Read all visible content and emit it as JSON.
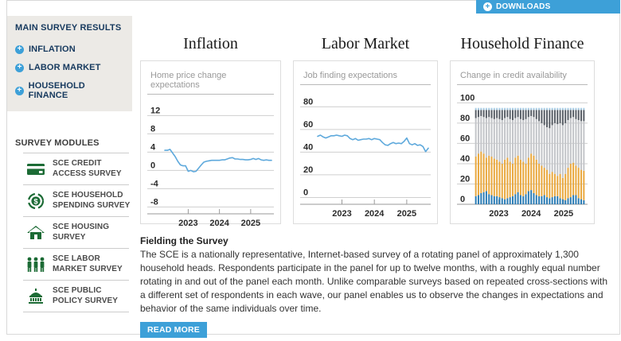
{
  "header": {
    "downloads_label": "DOWNLOADS"
  },
  "sidebar": {
    "main_title": "MAIN SURVEY RESULTS",
    "items": [
      {
        "label": "INFLATION"
      },
      {
        "label": "LABOR MARKET"
      },
      {
        "label": "HOUSEHOLD FINANCE"
      }
    ],
    "modules_title": "SURVEY MODULES",
    "modules": [
      {
        "icon": "credit-card-icon",
        "label": "SCE CREDIT ACCESS SURVEY"
      },
      {
        "icon": "dollar-cycle-icon",
        "label": "SCE HOUSEHOLD SPENDING SURVEY"
      },
      {
        "icon": "house-icon",
        "label": "SCE HOUSING SURVEY"
      },
      {
        "icon": "people-icon",
        "label": "SCE LABOR MARKET SURVEY"
      },
      {
        "icon": "capitol-icon",
        "label": "SCE PUBLIC POLICY SURVEY"
      }
    ]
  },
  "colors": {
    "accent_blue": "#3da0d8",
    "navy": "#16395e",
    "module_green": "#1c6b35",
    "line_blue": "#5ea9dc",
    "grid": "#cfcfcf",
    "axis": "#9a9a9a"
  },
  "chart_data": [
    {
      "type": "line",
      "title": "Inflation",
      "subtitle": "Home price change expectations",
      "yticks": [
        12,
        8,
        4,
        0,
        -4,
        -8
      ],
      "ylim": [
        -9.5,
        13.8
      ],
      "xticks": [
        {
          "label": "2023",
          "index": 9
        },
        {
          "label": "2024",
          "index": 21
        },
        {
          "label": "2025",
          "index": 33
        }
      ],
      "line_color": "#5ea9dc",
      "values": [
        4.4,
        4.4,
        4.6,
        3.8,
        3.0,
        2.0,
        1.2,
        1.0,
        1.0,
        -0.2,
        0.0,
        -0.3,
        -0.2,
        0.5,
        1.2,
        1.8,
        2.0,
        2.1,
        2.2,
        2.2,
        2.2,
        2.2,
        2.3,
        2.3,
        2.5,
        2.7,
        2.8,
        2.5,
        2.5,
        2.4,
        2.4,
        2.3,
        2.3,
        2.4,
        2.6,
        2.4,
        2.6,
        2.3,
        2.2,
        2.3,
        2.2,
        2.2
      ]
    },
    {
      "type": "line",
      "title": "Labor Market",
      "subtitle": "Job finding expectations",
      "yticks": [
        80,
        60,
        40,
        20,
        0
      ],
      "ylim": [
        -6,
        88
      ],
      "xticks": [
        {
          "label": "2023",
          "index": 9
        },
        {
          "label": "2024",
          "index": 21
        },
        {
          "label": "2025",
          "index": 33
        }
      ],
      "line_color": "#5ea9dc",
      "values": [
        54,
        55,
        53.5,
        52.5,
        53.5,
        54.5,
        54.5,
        55,
        54.5,
        54,
        55,
        54.5,
        52,
        51,
        52,
        50.5,
        51,
        51.5,
        51.5,
        52,
        51,
        52,
        51.5,
        51,
        48.5,
        46.5,
        46,
        47.5,
        48.5,
        47.5,
        48,
        47.5,
        49.5,
        52.5,
        47.5,
        46.5,
        47.5,
        46,
        46.5,
        45,
        40.5,
        43.5
      ]
    },
    {
      "type": "stacked-bar",
      "title": "Household Finance",
      "subtitle": "Change in credit availability",
      "yticks": [
        100,
        80,
        60,
        40,
        20,
        0
      ],
      "ylim": [
        0,
        105
      ],
      "xticks": [
        {
          "label": "2023",
          "index": 9
        },
        {
          "label": "2024",
          "index": 21
        },
        {
          "label": "2025",
          "index": 33
        }
      ],
      "segment_colors": [
        "#2b7cb5",
        "#e9a83e",
        "#c3c5c9",
        "#585e66",
        "#a9cde5"
      ],
      "stacks": [
        [
          8,
          39,
          38,
          8,
          2
        ],
        [
          9,
          41,
          36,
          7,
          2
        ],
        [
          11,
          41,
          35,
          6,
          2
        ],
        [
          12,
          38,
          36,
          7,
          2
        ],
        [
          13,
          33,
          39,
          8,
          2
        ],
        [
          10,
          38,
          38,
          7,
          2
        ],
        [
          9,
          38,
          38,
          8,
          2
        ],
        [
          8,
          37,
          39,
          9,
          2
        ],
        [
          8,
          36,
          41,
          8,
          2
        ],
        [
          7,
          35,
          42,
          9,
          2
        ],
        [
          6,
          34,
          43,
          10,
          2
        ],
        [
          5,
          39,
          41,
          8,
          2
        ],
        [
          6,
          40,
          40,
          7,
          2
        ],
        [
          7,
          35,
          42,
          9,
          2
        ],
        [
          8,
          32,
          43,
          10,
          2
        ],
        [
          10,
          36,
          39,
          8,
          2
        ],
        [
          12,
          36,
          38,
          7,
          2
        ],
        [
          9,
          35,
          40,
          9,
          2
        ],
        [
          8,
          34,
          41,
          10,
          2
        ],
        [
          10,
          30,
          44,
          9,
          2
        ],
        [
          13,
          33,
          40,
          7,
          2
        ],
        [
          14,
          36,
          37,
          6,
          2
        ],
        [
          11,
          37,
          38,
          7,
          2
        ],
        [
          9,
          35,
          40,
          9,
          2
        ],
        [
          8,
          32,
          42,
          11,
          2
        ],
        [
          8,
          30,
          42,
          13,
          2
        ],
        [
          9,
          27,
          42,
          15,
          2
        ],
        [
          7,
          27,
          42,
          17,
          2
        ],
        [
          6,
          24,
          45,
          18,
          2
        ],
        [
          7,
          25,
          46,
          15,
          2
        ],
        [
          8,
          22,
          50,
          13,
          2
        ],
        [
          8,
          20,
          51,
          14,
          2
        ],
        [
          6,
          24,
          50,
          13,
          2
        ],
        [
          5,
          21,
          52,
          15,
          2
        ],
        [
          4,
          26,
          50,
          13,
          2
        ],
        [
          6,
          30,
          47,
          10,
          2
        ],
        [
          7,
          33,
          45,
          8,
          2
        ],
        [
          9,
          32,
          45,
          7,
          2
        ],
        [
          9,
          29,
          46,
          9,
          2
        ],
        [
          6,
          30,
          47,
          10,
          2
        ],
        [
          5,
          29,
          48,
          11,
          2
        ],
        [
          4,
          29,
          49,
          11,
          2
        ]
      ]
    }
  ],
  "fielding": {
    "title": "Fielding the Survey",
    "body": "The SCE is a nationally representative, Internet-based survey of a rotating panel of approximately 1,300 household heads. Respondents participate in the panel for up to twelve months, with a roughly equal number rotating in and out of the panel each month. Unlike comparable surveys based on repeated cross-sections with a different set of respondents in each wave, our panel enables us to observe the changes in expectations and behavior of the same individuals over time.",
    "read_more_label": "READ MORE"
  }
}
